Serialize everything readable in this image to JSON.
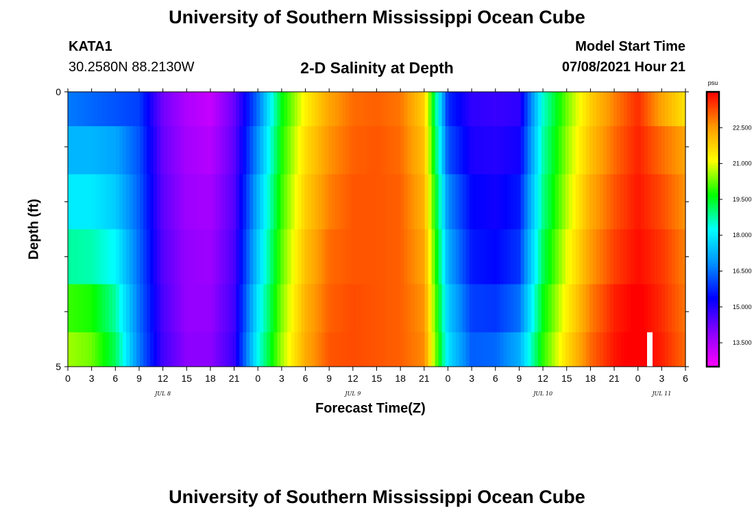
{
  "header": {
    "title_top": "University of Southern Mississippi Ocean Cube",
    "title_bottom": "University of Southern Mississippi Ocean Cube",
    "station_id": "KATA1",
    "station_coords": "30.2580N  88.2130W",
    "model_start_label": "Model Start Time",
    "model_start_value": "07/08/2021 Hour 21",
    "plot_title": "2-D Salinity at Depth"
  },
  "chart_data": {
    "type": "heatmap",
    "title": "2-D Salinity at Depth",
    "xlabel": "Forecast Time(Z)",
    "ylabel": "Depth (ft)",
    "colorbar_unit": "psu",
    "x_tick_labels": [
      "0",
      "3",
      "6",
      "9",
      "12",
      "15",
      "18",
      "21",
      "0",
      "3",
      "6",
      "9",
      "12",
      "15",
      "18",
      "21",
      "0",
      "3",
      "6",
      "9",
      "12",
      "15",
      "18",
      "21",
      "0",
      "3",
      "6"
    ],
    "x_range_hours": [
      0,
      78
    ],
    "day_labels": [
      {
        "label": "JUL 8",
        "hour": 12
      },
      {
        "label": "JUL 9",
        "hour": 36
      },
      {
        "label": "JUL 10",
        "hour": 60
      },
      {
        "label": "JUL 11",
        "hour": 75
      }
    ],
    "y_tick_labels": [
      "0",
      "5"
    ],
    "y_range": [
      0,
      5
    ],
    "y_inverted": true,
    "depth_levels": [
      0.25,
      1.0,
      2.0,
      3.0,
      4.0,
      4.75
    ],
    "time_hours": [
      0,
      3,
      6,
      9,
      12,
      15,
      18,
      21,
      24,
      27,
      30,
      33,
      36,
      39,
      42,
      45,
      48,
      51,
      54,
      57,
      60,
      63,
      66,
      69,
      72,
      75,
      78
    ],
    "salinity": [
      [
        16.6,
        16.4,
        16.2,
        16.0,
        14.2,
        13.5,
        13.2,
        14.3,
        16.5,
        19.6,
        21.3,
        22.4,
        23.0,
        23.1,
        22.9,
        21.8,
        15.8,
        14.9,
        14.8,
        14.9,
        18.5,
        20.3,
        21.8,
        22.8,
        23.6,
        22.4,
        21.5
      ],
      [
        17.3,
        17.3,
        17.1,
        16.2,
        14.3,
        13.6,
        13.4,
        14.4,
        16.9,
        19.8,
        21.6,
        22.6,
        23.1,
        23.2,
        23.0,
        22.0,
        16.2,
        15.1,
        15.0,
        15.2,
        18.7,
        20.5,
        22.0,
        23.0,
        23.7,
        23.0,
        22.4
      ],
      [
        18.0,
        18.0,
        17.6,
        16.3,
        14.4,
        13.7,
        13.6,
        14.5,
        17.3,
        20.0,
        21.8,
        22.8,
        23.2,
        23.2,
        23.1,
        22.2,
        16.8,
        15.4,
        15.2,
        15.6,
        18.9,
        20.7,
        22.3,
        23.2,
        23.8,
        23.3,
        22.6
      ],
      [
        18.8,
        18.7,
        18.2,
        16.4,
        14.5,
        13.8,
        13.7,
        14.6,
        17.6,
        20.2,
        22.0,
        23.0,
        23.2,
        23.2,
        23.1,
        22.4,
        17.2,
        15.6,
        15.4,
        15.9,
        19.2,
        21.0,
        22.5,
        23.4,
        23.9,
        23.5,
        22.8
      ],
      [
        20.0,
        19.8,
        18.8,
        16.5,
        14.6,
        13.8,
        13.8,
        14.7,
        18.0,
        20.4,
        22.2,
        23.1,
        23.3,
        23.2,
        23.1,
        22.6,
        17.6,
        16.0,
        15.9,
        16.5,
        19.6,
        21.3,
        22.8,
        23.7,
        24.1,
        23.6,
        22.9
      ],
      [
        20.6,
        20.3,
        19.2,
        16.6,
        14.7,
        13.9,
        13.9,
        14.8,
        18.3,
        20.6,
        22.3,
        23.2,
        23.3,
        23.2,
        23.1,
        22.7,
        17.9,
        16.3,
        16.4,
        17.2,
        19.9,
        21.6,
        23.0,
        23.8,
        24.2,
        23.7,
        23.0
      ]
    ],
    "colorbar_ticks": [
      "13.500",
      "15.000",
      "16.500",
      "18.000",
      "19.500",
      "21.000",
      "22.500"
    ],
    "colorbar_range": [
      12.5,
      24.0
    ],
    "colormap": [
      "#ff00ff",
      "#8a00ff",
      "#0000ff",
      "#0090ff",
      "#00ffff",
      "#00ff00",
      "#ffff00",
      "#ff9900",
      "#ff0000"
    ],
    "missing_marker": {
      "hour": 73.5,
      "depth": 4.75,
      "color": "#ffffff"
    }
  }
}
